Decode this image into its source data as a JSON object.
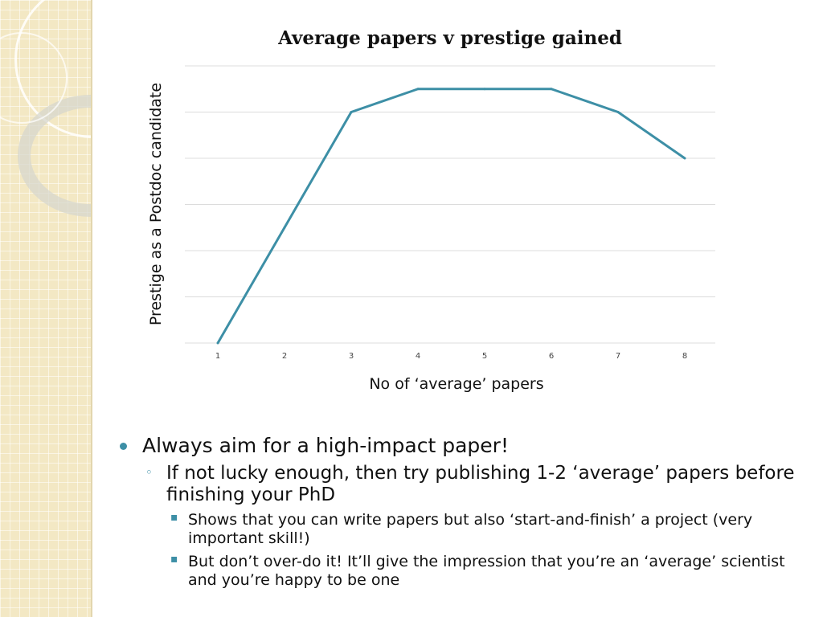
{
  "theme": {
    "line_color": "#3d8fa6",
    "grid_color": "#dcdcdc",
    "strip_color": "#f3e8c4"
  },
  "chart_data": {
    "type": "line",
    "title": "Average papers v prestige gained",
    "xlabel": "No of ‘average’ papers",
    "ylabel": "Prestige as a Postdoc candidate",
    "x": [
      1,
      2,
      3,
      4,
      5,
      6,
      7,
      8
    ],
    "x_tick_labels": [
      "1",
      "2",
      "3",
      "4",
      "5",
      "6",
      "7",
      "8"
    ],
    "series": [
      {
        "values": [
          0,
          2.5,
          5,
          5.5,
          5.5,
          5.5,
          5,
          4
        ]
      }
    ],
    "ylim": [
      0,
      6
    ],
    "y_tick_labels_visible": false,
    "grid": true,
    "legend": "none"
  },
  "bullets": {
    "level1": "Always aim for a high-impact paper!",
    "level2": "If not lucky enough, then try publishing 1-2 ‘average’ papers before finishing your PhD",
    "level3": [
      "Shows that you can write papers but also ‘start-and-finish’ a project (very important skill!)",
      "But don’t over-do it! It’ll give the impression that you’re an ‘average’ scientist and you’re happy to be one"
    ]
  }
}
